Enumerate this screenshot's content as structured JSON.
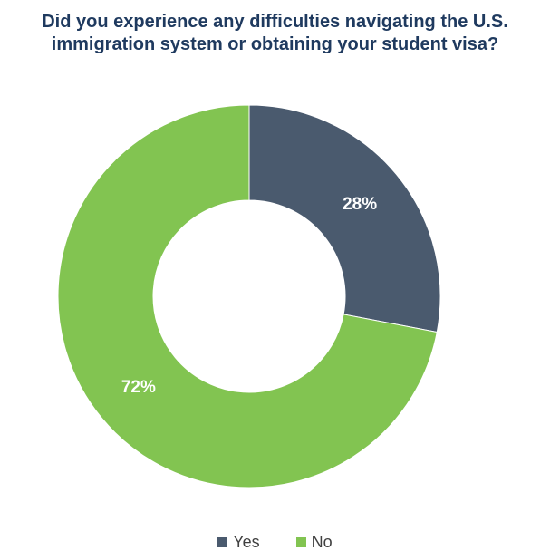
{
  "chart_data": {
    "type": "pie",
    "title_line1": "Did you experience any difficulties navigating the U.S.",
    "title_line2": "immigration system or obtaining your student visa?",
    "slices": [
      {
        "name": "Yes",
        "value": 28,
        "label": "28%",
        "color": "#4a5a6e"
      },
      {
        "name": "No",
        "value": 72,
        "label": "72%",
        "color": "#82c451"
      }
    ],
    "legend_position": "bottom",
    "donut": true
  }
}
